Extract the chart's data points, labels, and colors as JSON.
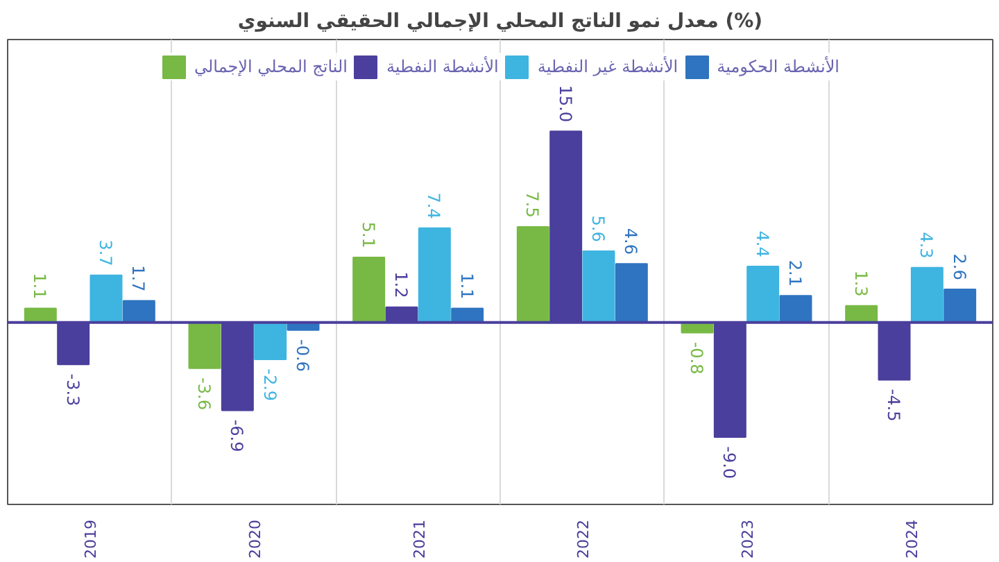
{
  "chart_data": {
    "type": "bar",
    "title": "معدل نمو الناتج المحلي الإجمالي الحقيقي السنوي (%)",
    "categories": [
      "2019",
      "2020",
      "2021",
      "2022",
      "2023",
      "2024"
    ],
    "series": [
      {
        "name": "الناتج المحلي الإجمالي",
        "color": "#77b944",
        "values": [
          1.1,
          -3.6,
          5.1,
          7.5,
          -0.8,
          1.3
        ],
        "value_labels": [
          "1.1",
          "-3.6",
          "5.1",
          "7.5",
          "-0.8",
          "1.3"
        ]
      },
      {
        "name": "الأنشطة النفطية",
        "color": "#4a3f9c",
        "values": [
          -3.3,
          -6.9,
          1.2,
          15.0,
          -9.0,
          -4.5
        ],
        "value_labels": [
          "-3.3",
          "-6.9",
          "1.2",
          "15.0",
          "-9.0",
          "-4.5"
        ]
      },
      {
        "name": "الأنشطة غير النفطية",
        "color": "#3eb4e0",
        "values": [
          3.7,
          -2.9,
          7.4,
          5.6,
          4.4,
          4.3
        ],
        "value_labels": [
          "3.7",
          "-2.9",
          "7.4",
          "5.6",
          "4.4",
          "4.3"
        ]
      },
      {
        "name": "الأنشطة الحكومية",
        "color": "#2f74c0",
        "values": [
          1.7,
          -0.6,
          1.1,
          4.6,
          2.1,
          2.6
        ],
        "value_labels": [
          "1.7",
          "-0.6",
          "1.1",
          "4.6",
          "2.1",
          "2.6"
        ]
      }
    ],
    "ref_lines": [
      {
        "axis": "y",
        "value": 0,
        "color": "#4a3f9c"
      }
    ],
    "grid": "x",
    "legend": "top",
    "tick_labels": "x"
  }
}
